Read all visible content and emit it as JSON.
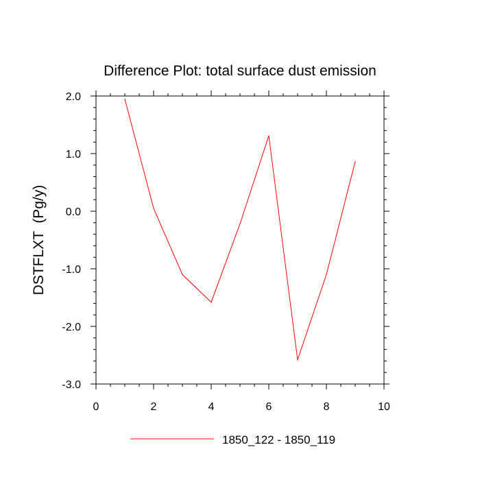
{
  "chart_data": {
    "type": "line",
    "title": "Difference Plot: total surface dust emission",
    "xlabel": "",
    "ylabel": "DSTFLXT  (Pg/y)",
    "xlim": [
      0,
      10
    ],
    "ylim": [
      -3.0,
      2.0
    ],
    "x_ticks": [
      0,
      2,
      4,
      6,
      8,
      10
    ],
    "x_tick_labels": [
      "0",
      "2",
      "4",
      "6",
      "8",
      "10"
    ],
    "y_ticks": [
      -3.0,
      -2.0,
      -1.0,
      0.0,
      1.0,
      2.0
    ],
    "y_tick_labels": [
      "-3.0",
      "-2.0",
      "-1.0",
      "0.0",
      "1.0",
      "2.0"
    ],
    "grid": false,
    "legend_position": "bottom",
    "series": [
      {
        "name": "1850_122 - 1850_119",
        "color": "#ff0000",
        "x": [
          1,
          2,
          3,
          4,
          5,
          6,
          7,
          8,
          9
        ],
        "y": [
          1.95,
          0.05,
          -1.1,
          -1.58,
          -0.22,
          1.31,
          -2.58,
          -1.1,
          0.86
        ]
      }
    ]
  }
}
